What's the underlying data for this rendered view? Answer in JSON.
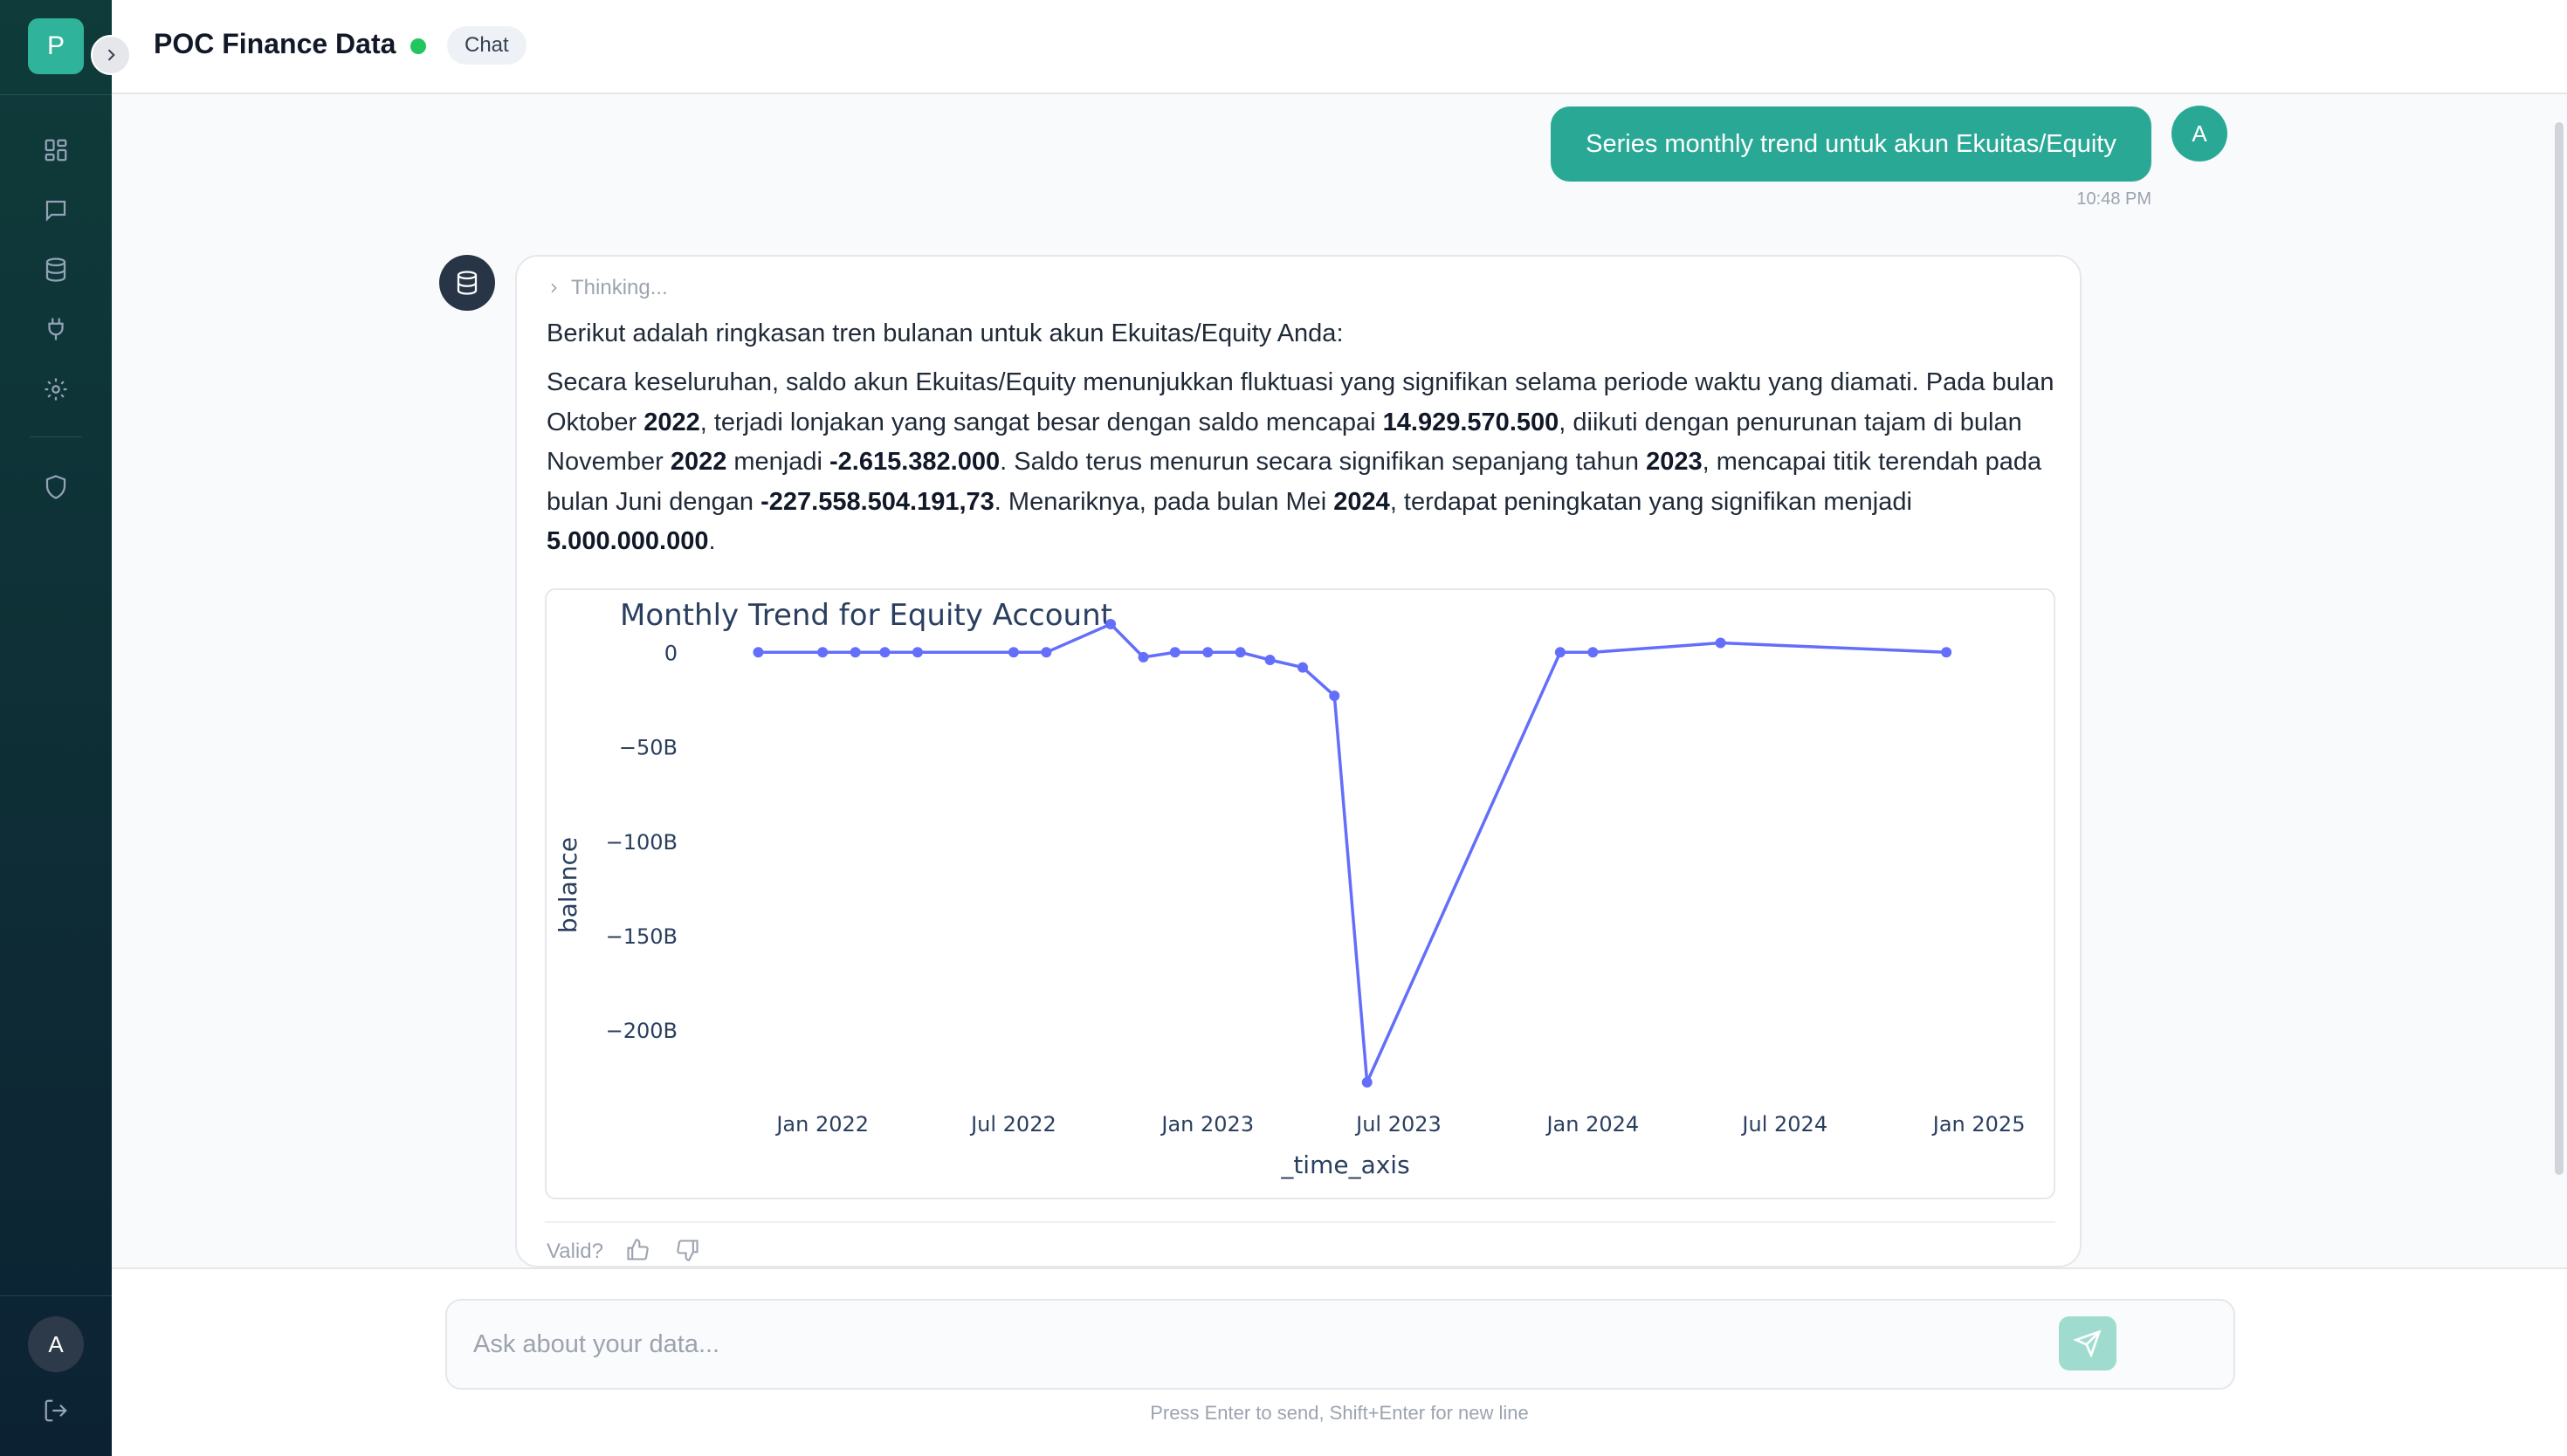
{
  "sidebar": {
    "logo_letter": "P",
    "nav": [
      {
        "icon": "dashboard-icon"
      },
      {
        "icon": "chat-icon"
      },
      {
        "icon": "database-icon"
      },
      {
        "icon": "plug-icon"
      },
      {
        "icon": "gear-icon"
      },
      {
        "icon": "shield-icon"
      }
    ],
    "user_initial": "A"
  },
  "header": {
    "title": "POC Finance Data",
    "status_color": "#22c55e",
    "chip_label": "Chat"
  },
  "conversation": {
    "user_message": {
      "text": "Series monthly trend untuk akun Ekuitas/Equity",
      "time": "10:48 PM",
      "avatar_initial": "A"
    },
    "assistant_message": {
      "thinking_label": "Thinking...",
      "intro": "Berikut adalah ringkasan tren bulanan untuk akun Ekuitas/Equity Anda:",
      "paragraph": [
        {
          "t": "Secara keseluruhan, saldo akun Ekuitas/Equity menunjukkan fluktuasi yang signifikan selama periode waktu yang diamati. Pada bulan Oktober ",
          "b": false
        },
        {
          "t": "2022",
          "b": true
        },
        {
          "t": ", terjadi lonjakan yang sangat besar dengan saldo mencapai ",
          "b": false
        },
        {
          "t": "14.929.570.500",
          "b": true
        },
        {
          "t": ", diikuti dengan penurunan tajam di bulan November ",
          "b": false
        },
        {
          "t": "2022",
          "b": true
        },
        {
          "t": " menjadi ",
          "b": false
        },
        {
          "t": "-2.615.382.000",
          "b": true
        },
        {
          "t": ". Saldo terus menurun secara signifikan sepanjang tahun ",
          "b": false
        },
        {
          "t": "2023",
          "b": true
        },
        {
          "t": ", mencapai titik terendah pada bulan Juni dengan ",
          "b": false
        },
        {
          "t": "-227.558.504.191,73",
          "b": true
        },
        {
          "t": ". Menariknya, pada bulan Mei ",
          "b": false
        },
        {
          "t": "2024",
          "b": true
        },
        {
          "t": ", terdapat peningkatan yang signifikan menjadi ",
          "b": false
        },
        {
          "t": "5.000.000.000",
          "b": true
        },
        {
          "t": ".",
          "b": false
        }
      ],
      "valid_label": "Valid?"
    }
  },
  "chart_data": {
    "type": "line",
    "title": "Monthly Trend for Equity Account",
    "xlabel": "_time_axis",
    "ylabel": "balance",
    "color": "#636efa",
    "x_ticks": [
      "Jan 2022",
      "Jul 2022",
      "Jan 2023",
      "Jul 2023",
      "Jan 2024",
      "Jul 2024",
      "Jan 2025"
    ],
    "y_ticks": [
      {
        "value": 0,
        "label": "0"
      },
      {
        "value": -50,
        "label": "−50B"
      },
      {
        "value": -100,
        "label": "−100B"
      },
      {
        "value": -150,
        "label": "−150B"
      },
      {
        "value": -200,
        "label": "−200B"
      }
    ],
    "y_unit": "B",
    "ylim": [
      -235,
      20
    ],
    "xlim": [
      "2021-10-01",
      "2025-02-15"
    ],
    "series": [
      {
        "points": [
          {
            "x": "2021-11-01",
            "y": 0
          },
          {
            "x": "2022-01-01",
            "y": 0
          },
          {
            "x": "2022-02-01",
            "y": 0
          },
          {
            "x": "2022-03-01",
            "y": 0
          },
          {
            "x": "2022-04-01",
            "y": 0
          },
          {
            "x": "2022-07-01",
            "y": 0
          },
          {
            "x": "2022-08-01",
            "y": 0
          },
          {
            "x": "2022-10-01",
            "y": 14.93
          },
          {
            "x": "2022-11-01",
            "y": -2.6
          },
          {
            "x": "2022-12-01",
            "y": 0
          },
          {
            "x": "2023-01-01",
            "y": 0
          },
          {
            "x": "2023-02-01",
            "y": 0
          },
          {
            "x": "2023-03-01",
            "y": -4
          },
          {
            "x": "2023-04-01",
            "y": -8
          },
          {
            "x": "2023-05-01",
            "y": -23
          },
          {
            "x": "2023-06-01",
            "y": -227.56
          },
          {
            "x": "2023-12-01",
            "y": 0
          },
          {
            "x": "2024-01-01",
            "y": 0
          },
          {
            "x": "2024-05-01",
            "y": 5
          },
          {
            "x": "2024-12-01",
            "y": 0
          }
        ]
      }
    ]
  },
  "composer": {
    "placeholder": "Ask about your data...",
    "hint": "Press Enter to send, Shift+Enter for new line"
  }
}
